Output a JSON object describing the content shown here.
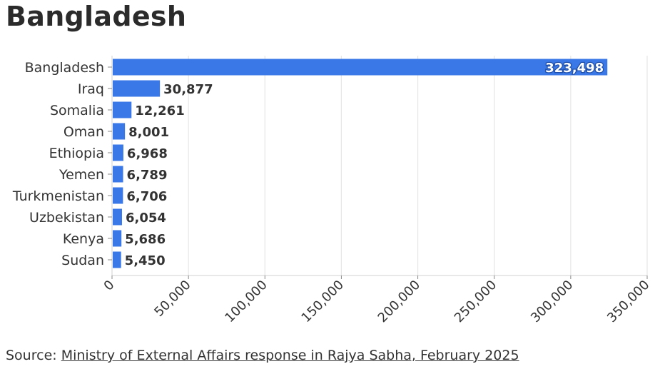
{
  "header": {
    "title": "Bangladesh"
  },
  "colors": {
    "bar": "#3b78e7",
    "grid": "#e6e6e6",
    "text": "#333333",
    "label_inside": "#ffffff"
  },
  "chart_data": {
    "type": "bar",
    "orientation": "horizontal",
    "categories": [
      "Bangladesh",
      "Iraq",
      "Somalia",
      "Oman",
      "Ethiopia",
      "Yemen",
      "Turkmenistan",
      "Uzbekistan",
      "Kenya",
      "Sudan"
    ],
    "values": [
      323498,
      30877,
      12261,
      8001,
      6968,
      6789,
      6706,
      6054,
      5686,
      5450
    ],
    "data_labels": [
      "323,498",
      "30,877",
      "12,261",
      "8,001",
      "6,968",
      "6,789",
      "6,706",
      "6,054",
      "5,686",
      "5,450"
    ],
    "xlim": [
      0,
      350000
    ],
    "xticks": [
      0,
      50000,
      100000,
      150000,
      200000,
      250000,
      300000,
      350000
    ],
    "xtick_labels": [
      "0",
      "50,000",
      "100,000",
      "150,000",
      "200,000",
      "250,000",
      "300,000",
      "350,000"
    ],
    "grid": "vertical",
    "legend": "none"
  },
  "footer": {
    "source_prefix": "Source: ",
    "source_link": "Ministry of External Affairs response in Rajya Sabha, February 2025"
  }
}
